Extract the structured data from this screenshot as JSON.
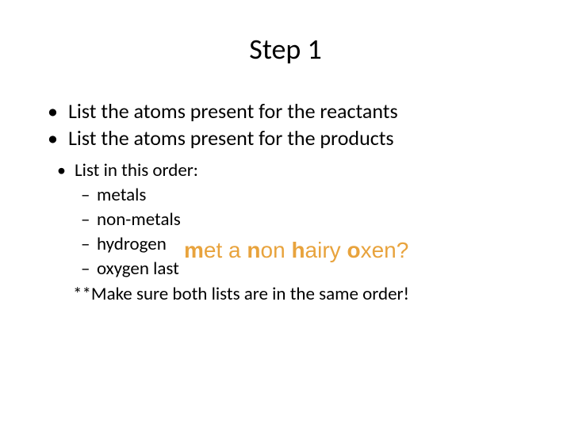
{
  "title": "Step 1",
  "bullets": {
    "b1": "List the atoms present for the reactants",
    "b2": "List the atoms present for the products",
    "sub": {
      "order": "List in this order:",
      "i1": "metals",
      "i2": "non-metals",
      "i3": "hydrogen",
      "i4": "oxygen last"
    },
    "note": "**Make sure both lists are in the same order!"
  },
  "mnemonic": {
    "parts": [
      "m",
      "et a ",
      "n",
      "on ",
      "h",
      "airy ",
      "o",
      "xen?"
    ],
    "color": "#e8a33d",
    "font_family": "Arial",
    "font_size": 28
  },
  "colors": {
    "background": "#ffffff",
    "text": "#000000"
  }
}
